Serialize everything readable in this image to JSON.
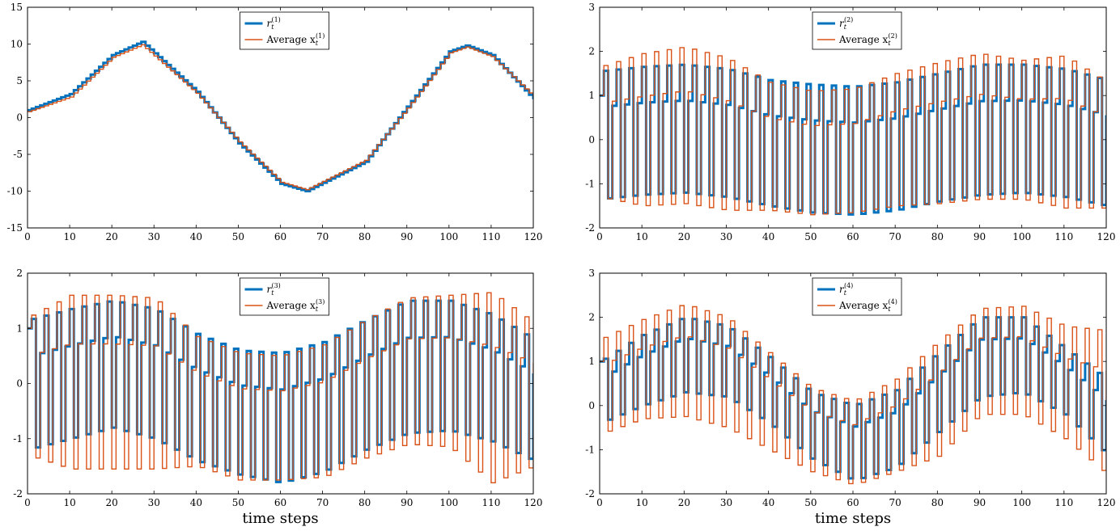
{
  "colors": {
    "reference": "#0072BD",
    "average": "#D95319",
    "axis": "#000000",
    "overlap": "#6A6A9A"
  },
  "chart_data": [
    {
      "type": "line",
      "index": "1",
      "xlabel": "",
      "xlim": [
        0,
        120
      ],
      "ylim": [
        -15,
        15
      ],
      "xticks": [
        "0",
        "10",
        "20",
        "30",
        "40",
        "50",
        "60",
        "70",
        "80",
        "90",
        "100",
        "110",
        "120"
      ],
      "yticks": [
        "-15",
        "-10",
        "-5",
        "0",
        "5",
        "10",
        "15"
      ],
      "legend_position": "top-center",
      "series": [
        {
          "name": "r_t^{(1)}",
          "legend_main": "r",
          "legend_sub": "t",
          "legend_sup": "(1)",
          "style": "thick step",
          "x": [
            0,
            10,
            20,
            27,
            40,
            50,
            60,
            66,
            80,
            90,
            100,
            104,
            110,
            120
          ],
          "y": [
            1,
            3.2,
            8.5,
            10.3,
            3.5,
            -3.5,
            -9,
            -10,
            -6,
            1.5,
            9,
            9.8,
            8.5,
            2.5
          ]
        },
        {
          "name": "Average x_t^{(1)}",
          "legend_main": "Average x",
          "legend_sub": "t",
          "legend_sup": "(1)",
          "style": "thin step",
          "x": [
            0,
            10,
            20,
            27,
            40,
            50,
            60,
            66,
            80,
            90,
            100,
            104,
            110,
            120
          ],
          "y": [
            0.8,
            2.8,
            8.2,
            9.9,
            3.3,
            -3.3,
            -8.8,
            -9.8,
            -5.8,
            1.3,
            8.8,
            9.6,
            8.3,
            2.8
          ]
        }
      ]
    },
    {
      "type": "line",
      "index": "2",
      "xlabel": "",
      "xlim": [
        0,
        120
      ],
      "ylim": [
        -2,
        3
      ],
      "xticks": [
        "0",
        "10",
        "20",
        "30",
        "40",
        "50",
        "60",
        "70",
        "80",
        "90",
        "100",
        "110",
        "120"
      ],
      "yticks": [
        "-2",
        "-1",
        "0",
        "1",
        "2",
        "3"
      ],
      "legend_position": "top-center",
      "series": [
        {
          "name": "r_t^{(2)}",
          "legend_main": "r",
          "legend_sub": "t",
          "legend_sup": "(2)",
          "style": "thick step",
          "x": [
            0,
            10,
            20,
            30,
            40,
            50,
            60,
            70,
            80,
            90,
            100,
            110,
            120
          ],
          "hi": [
            1.55,
            1.65,
            1.7,
            1.6,
            1.35,
            1.25,
            1.2,
            1.3,
            1.5,
            1.7,
            1.7,
            1.6,
            1.35
          ],
          "lo": [
            -1.35,
            -1.25,
            -1.2,
            -1.3,
            -1.5,
            -1.65,
            -1.7,
            -1.6,
            -1.4,
            -1.25,
            -1.2,
            -1.3,
            -1.5
          ]
        },
        {
          "name": "Average x_t^{(2)}",
          "legend_main": "Average x",
          "legend_sub": "t",
          "legend_sup": "(2)",
          "style": "thin step",
          "x": [
            0,
            10,
            20,
            30,
            40,
            50,
            60,
            70,
            80,
            90,
            100,
            110,
            120
          ],
          "hi": [
            1.65,
            1.95,
            2.1,
            1.85,
            1.3,
            1.1,
            1.15,
            1.5,
            1.75,
            1.95,
            1.8,
            1.9,
            1.3
          ],
          "lo": [
            -1.3,
            -1.5,
            -1.45,
            -1.6,
            -1.6,
            -1.7,
            -1.65,
            -1.5,
            -1.45,
            -1.35,
            -1.35,
            -1.55,
            -1.55
          ]
        }
      ]
    },
    {
      "type": "line",
      "index": "3",
      "xlabel": "time steps",
      "xlim": [
        0,
        120
      ],
      "ylim": [
        -2,
        2
      ],
      "xticks": [
        "0",
        "10",
        "20",
        "30",
        "40",
        "50",
        "60",
        "70",
        "80",
        "90",
        "100",
        "110",
        "120"
      ],
      "yticks": [
        "-2",
        "-1",
        "0",
        "1",
        "2"
      ],
      "legend_position": "top-center",
      "series": [
        {
          "name": "r_t^{(3)}",
          "legend_main": "r",
          "legend_sub": "t",
          "legend_sup": "(3)",
          "style": "thick step",
          "x": [
            0,
            10,
            20,
            30,
            40,
            50,
            60,
            70,
            80,
            90,
            100,
            110,
            120
          ],
          "hi": [
            1.15,
            1.35,
            1.5,
            1.35,
            0.9,
            0.6,
            0.55,
            0.75,
            1.15,
            1.5,
            1.5,
            1.25,
            0.8
          ],
          "lo": [
            -1.2,
            -1.0,
            -0.8,
            -1.0,
            -1.4,
            -1.65,
            -1.8,
            -1.6,
            -1.2,
            -0.9,
            -0.85,
            -1.05,
            -1.4
          ]
        },
        {
          "name": "Average x_t^{(3)}",
          "legend_main": "Average x",
          "legend_sub": "t",
          "legend_sup": "(3)",
          "style": "thin step",
          "x": [
            0,
            10,
            20,
            30,
            40,
            50,
            60,
            70,
            80,
            90,
            100,
            110,
            120
          ],
          "hi": [
            1.2,
            1.6,
            1.6,
            1.55,
            0.85,
            0.55,
            0.5,
            0.7,
            1.15,
            1.55,
            1.6,
            1.65,
            1.1
          ],
          "lo": [
            -1.3,
            -1.55,
            -1.55,
            -1.55,
            -1.5,
            -1.75,
            -1.75,
            -1.7,
            -1.35,
            -1.1,
            -1.15,
            -1.8,
            -1.5
          ]
        }
      ]
    },
    {
      "type": "line",
      "index": "4",
      "xlabel": "time steps",
      "xlim": [
        0,
        120
      ],
      "ylim": [
        -2,
        3
      ],
      "xticks": [
        "0",
        "10",
        "20",
        "30",
        "40",
        "50",
        "60",
        "70",
        "80",
        "90",
        "100",
        "110",
        "120"
      ],
      "yticks": [
        "-2",
        "-1",
        "0",
        "1",
        "2",
        "3"
      ],
      "legend_position": "top-center",
      "series": [
        {
          "name": "r_t^{(4)}",
          "legend_main": "r",
          "legend_sub": "t",
          "legend_sup": "(4)",
          "style": "thick step",
          "x": [
            0,
            10,
            20,
            30,
            40,
            50,
            60,
            70,
            80,
            90,
            100,
            110,
            120
          ],
          "hi": [
            1.0,
            1.6,
            2.0,
            1.8,
            1.1,
            0.3,
            0.0,
            0.35,
            1.2,
            2.0,
            2.0,
            1.3,
            0.6
          ],
          "lo": [
            -0.4,
            0.0,
            0.3,
            0.2,
            -0.4,
            -1.2,
            -1.7,
            -1.4,
            -0.6,
            0.2,
            0.3,
            -0.2,
            -1.1
          ]
        },
        {
          "name": "Average x_t^{(4)}",
          "legend_main": "Average x",
          "legend_sub": "t",
          "legend_sup": "(4)",
          "style": "thin step",
          "x": [
            0,
            10,
            20,
            30,
            40,
            50,
            60,
            70,
            80,
            90,
            100,
            110,
            120
          ],
          "hi": [
            1.5,
            1.95,
            2.3,
            2.0,
            1.2,
            0.4,
            0.1,
            0.6,
            1.45,
            2.2,
            2.25,
            1.8,
            1.7
          ],
          "lo": [
            -0.65,
            -0.3,
            -0.25,
            -0.5,
            -1.0,
            -1.5,
            -1.8,
            -1.5,
            -1.15,
            -0.2,
            -0.2,
            -0.75,
            -1.55
          ]
        }
      ]
    }
  ]
}
